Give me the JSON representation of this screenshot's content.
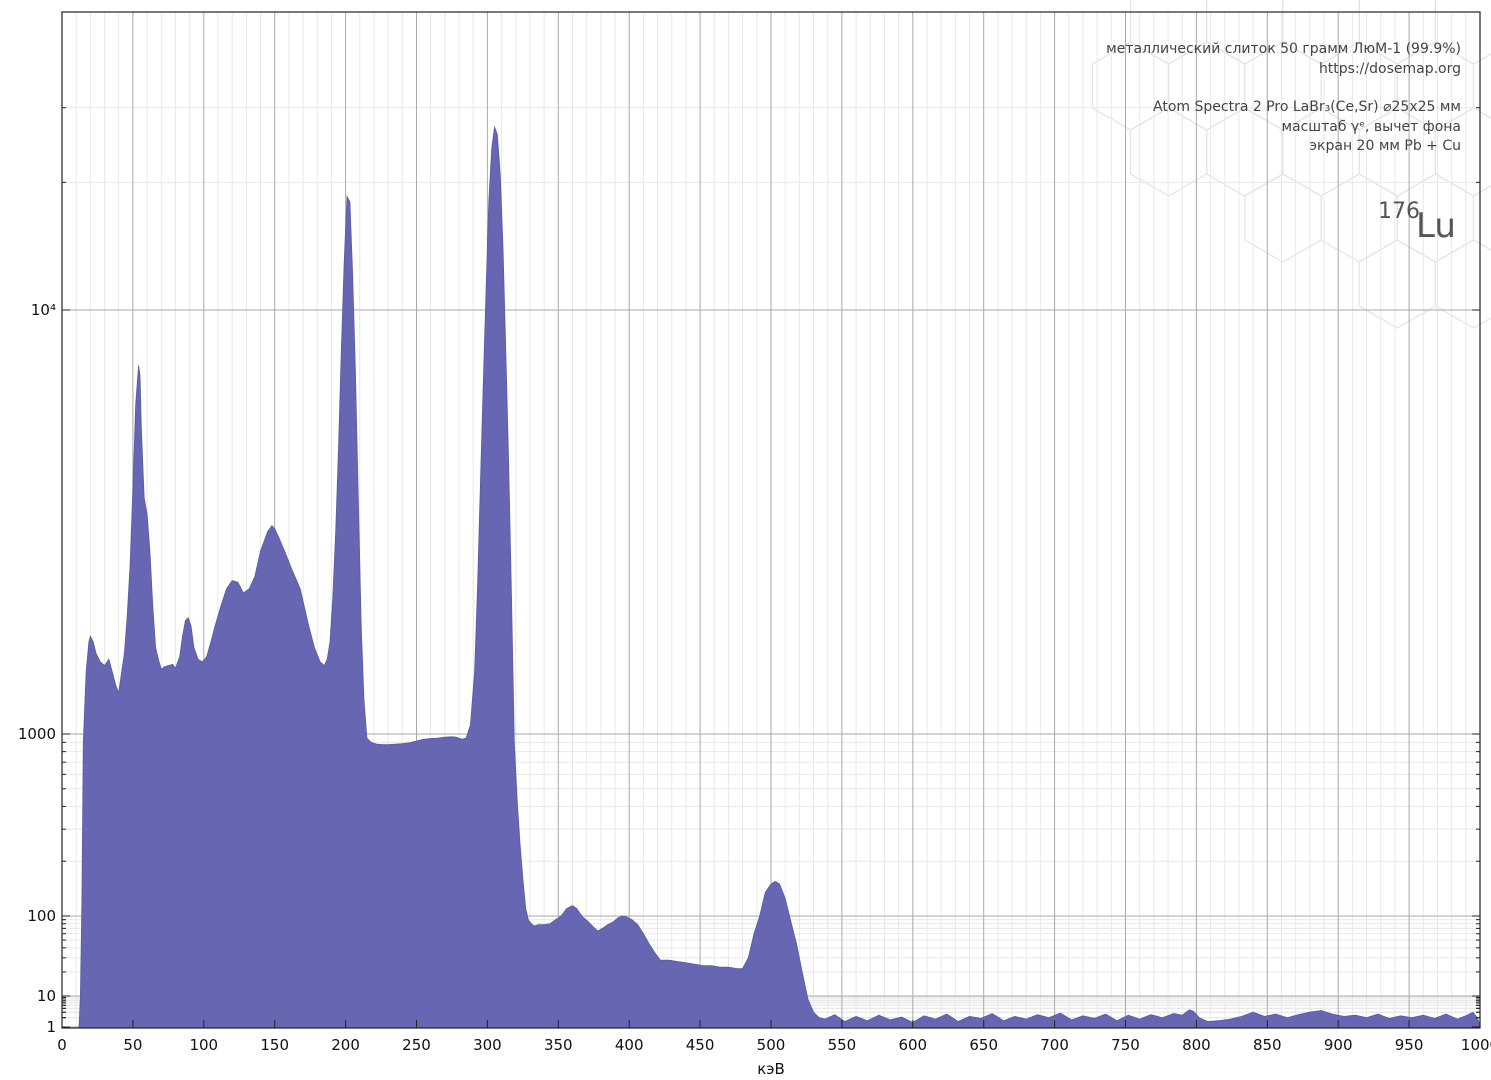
{
  "chart_data": {
    "type": "area",
    "title": "",
    "xlabel": "кэВ",
    "ylabel": "",
    "xlim": [
      0,
      1000
    ],
    "y_scale": "gamma^e (log-like)",
    "xticks": [
      0,
      50,
      100,
      150,
      200,
      250,
      300,
      350,
      400,
      450,
      500,
      550,
      600,
      650,
      700,
      750,
      800,
      850,
      900,
      950,
      1000
    ],
    "yticks": [
      {
        "value": 1,
        "label": "1"
      },
      {
        "value": 10,
        "label": "10"
      },
      {
        "value": 100,
        "label": "100"
      },
      {
        "value": 1000,
        "label": "1000"
      },
      {
        "value": 10000,
        "label": "10⁴"
      }
    ],
    "grid": true,
    "fill_color": "#6666b2",
    "annotations": [
      "металлический слиток 50 грамм ЛюМ-1 (99.9%)",
      "https://dosemap.org",
      "Atom Spectra 2 Pro LaBr₃(Ce,Sr) ⌀25x25 мм",
      "масштаб γᵉ, вычет фона",
      "экран 20 мм Pb + Cu"
    ],
    "isotope": {
      "mass": "176",
      "symbol": "Lu"
    },
    "series": [
      {
        "points": [
          [
            12,
            1
          ],
          [
            13,
            10
          ],
          [
            14,
            120
          ],
          [
            15,
            900
          ],
          [
            17,
            1400
          ],
          [
            19,
            1650
          ],
          [
            20,
            1700
          ],
          [
            22,
            1650
          ],
          [
            24,
            1550
          ],
          [
            27,
            1480
          ],
          [
            30,
            1450
          ],
          [
            33,
            1500
          ],
          [
            35,
            1420
          ],
          [
            38,
            1300
          ],
          [
            40,
            1250
          ],
          [
            42,
            1400
          ],
          [
            44,
            1550
          ],
          [
            46,
            1900
          ],
          [
            48,
            2500
          ],
          [
            50,
            3800
          ],
          [
            52,
            6000
          ],
          [
            54,
            7400
          ],
          [
            55,
            7000
          ],
          [
            56,
            5200
          ],
          [
            58,
            3600
          ],
          [
            60,
            3300
          ],
          [
            62,
            2700
          ],
          [
            64,
            2000
          ],
          [
            66,
            1600
          ],
          [
            68,
            1500
          ],
          [
            70,
            1420
          ],
          [
            72,
            1440
          ],
          [
            75,
            1450
          ],
          [
            78,
            1460
          ],
          [
            80,
            1430
          ],
          [
            83,
            1520
          ],
          [
            85,
            1700
          ],
          [
            87,
            1850
          ],
          [
            89,
            1880
          ],
          [
            91,
            1800
          ],
          [
            93,
            1600
          ],
          [
            96,
            1500
          ],
          [
            99,
            1480
          ],
          [
            102,
            1520
          ],
          [
            105,
            1650
          ],
          [
            108,
            1800
          ],
          [
            112,
            2000
          ],
          [
            116,
            2200
          ],
          [
            120,
            2300
          ],
          [
            124,
            2280
          ],
          [
            128,
            2150
          ],
          [
            132,
            2200
          ],
          [
            136,
            2350
          ],
          [
            140,
            2700
          ],
          [
            145,
            3000
          ],
          [
            148,
            3100
          ],
          [
            150,
            3050
          ],
          [
            153,
            2900
          ],
          [
            157,
            2700
          ],
          [
            162,
            2450
          ],
          [
            168,
            2200
          ],
          [
            174,
            1800
          ],
          [
            178,
            1600
          ],
          [
            182,
            1480
          ],
          [
            185,
            1450
          ],
          [
            187,
            1500
          ],
          [
            189,
            1650
          ],
          [
            191,
            2100
          ],
          [
            193,
            3000
          ],
          [
            195,
            4700
          ],
          [
            197,
            8000
          ],
          [
            199,
            13000
          ],
          [
            201,
            18500
          ],
          [
            203,
            18000
          ],
          [
            205,
            12000
          ],
          [
            207,
            7000
          ],
          [
            209,
            3500
          ],
          [
            211,
            1800
          ],
          [
            213,
            1200
          ],
          [
            215,
            950
          ],
          [
            218,
            900
          ],
          [
            222,
            880
          ],
          [
            226,
            875
          ],
          [
            230,
            875
          ],
          [
            235,
            880
          ],
          [
            240,
            885
          ],
          [
            245,
            895
          ],
          [
            250,
            915
          ],
          [
            255,
            935
          ],
          [
            260,
            945
          ],
          [
            265,
            950
          ],
          [
            270,
            960
          ],
          [
            275,
            965
          ],
          [
            278,
            960
          ],
          [
            282,
            935
          ],
          [
            285,
            950
          ],
          [
            288,
            1050
          ],
          [
            291,
            1400
          ],
          [
            293,
            2200
          ],
          [
            295,
            3800
          ],
          [
            297,
            6500
          ],
          [
            299,
            11000
          ],
          [
            301,
            18000
          ],
          [
            303,
            24000
          ],
          [
            305,
            27000
          ],
          [
            307,
            26000
          ],
          [
            309,
            21000
          ],
          [
            311,
            14000
          ],
          [
            313,
            8000
          ],
          [
            315,
            4300
          ],
          [
            317,
            2100
          ],
          [
            319,
            900
          ],
          [
            321,
            430
          ],
          [
            323,
            250
          ],
          [
            325,
            160
          ],
          [
            327,
            110
          ],
          [
            329,
            88
          ],
          [
            331,
            80
          ],
          [
            333,
            75
          ],
          [
            336,
            78
          ],
          [
            340,
            78
          ],
          [
            344,
            80
          ],
          [
            348,
            90
          ],
          [
            352,
            100
          ],
          [
            356,
            110
          ],
          [
            360,
            114
          ],
          [
            363,
            110
          ],
          [
            367,
            98
          ],
          [
            371,
            85
          ],
          [
            375,
            72
          ],
          [
            378,
            65
          ],
          [
            381,
            70
          ],
          [
            385,
            78
          ],
          [
            389,
            85
          ],
          [
            392,
            95
          ],
          [
            395,
            100
          ],
          [
            398,
            98
          ],
          [
            402,
            90
          ],
          [
            406,
            78
          ],
          [
            410,
            60
          ],
          [
            414,
            45
          ],
          [
            418,
            35
          ],
          [
            422,
            28
          ],
          [
            428,
            28
          ],
          [
            434,
            27
          ],
          [
            440,
            26
          ],
          [
            446,
            25
          ],
          [
            452,
            24
          ],
          [
            458,
            24
          ],
          [
            464,
            23
          ],
          [
            470,
            23
          ],
          [
            476,
            22
          ],
          [
            480,
            22
          ],
          [
            484,
            30
          ],
          [
            488,
            60
          ],
          [
            492,
            100
          ],
          [
            496,
            135
          ],
          [
            500,
            150
          ],
          [
            503,
            155
          ],
          [
            506,
            150
          ],
          [
            510,
            125
          ],
          [
            514,
            85
          ],
          [
            518,
            45
          ],
          [
            522,
            20
          ],
          [
            526,
            8
          ],
          [
            530,
            3
          ],
          [
            534,
            2
          ],
          [
            538,
            1.8
          ],
          [
            545,
            2.5
          ],
          [
            552,
            1.5
          ],
          [
            560,
            2.2
          ],
          [
            568,
            1.6
          ],
          [
            576,
            2.4
          ],
          [
            584,
            1.7
          ],
          [
            592,
            2.1
          ],
          [
            600,
            1.4
          ],
          [
            608,
            2.3
          ],
          [
            616,
            1.8
          ],
          [
            624,
            2.6
          ],
          [
            632,
            1.5
          ],
          [
            640,
            2.2
          ],
          [
            648,
            1.9
          ],
          [
            656,
            2.7
          ],
          [
            664,
            1.6
          ],
          [
            672,
            2.2
          ],
          [
            680,
            1.8
          ],
          [
            688,
            2.5
          ],
          [
            696,
            2.0
          ],
          [
            704,
            2.8
          ],
          [
            712,
            1.7
          ],
          [
            720,
            2.3
          ],
          [
            728,
            1.9
          ],
          [
            736,
            2.6
          ],
          [
            744,
            1.6
          ],
          [
            752,
            2.4
          ],
          [
            760,
            1.8
          ],
          [
            768,
            2.5
          ],
          [
            776,
            2.0
          ],
          [
            784,
            2.7
          ],
          [
            790,
            2.4
          ],
          [
            795,
            3.6
          ],
          [
            798,
            3.2
          ],
          [
            802,
            2.0
          ],
          [
            808,
            1.5
          ],
          [
            816,
            1.6
          ],
          [
            824,
            1.8
          ],
          [
            832,
            2.2
          ],
          [
            840,
            3.0
          ],
          [
            848,
            2.2
          ],
          [
            856,
            2.6
          ],
          [
            864,
            2.0
          ],
          [
            872,
            2.5
          ],
          [
            880,
            3.0
          ],
          [
            888,
            3.4
          ],
          [
            896,
            2.6
          ],
          [
            904,
            2.2
          ],
          [
            912,
            2.4
          ],
          [
            920,
            2.0
          ],
          [
            928,
            2.6
          ],
          [
            936,
            1.9
          ],
          [
            944,
            2.3
          ],
          [
            952,
            2.0
          ],
          [
            960,
            2.4
          ],
          [
            968,
            1.9
          ],
          [
            976,
            2.6
          ],
          [
            984,
            1.8
          ],
          [
            990,
            2.3
          ],
          [
            995,
            3.0
          ],
          [
            998,
            2.0
          ],
          [
            1000,
            1.2
          ]
        ]
      }
    ]
  }
}
